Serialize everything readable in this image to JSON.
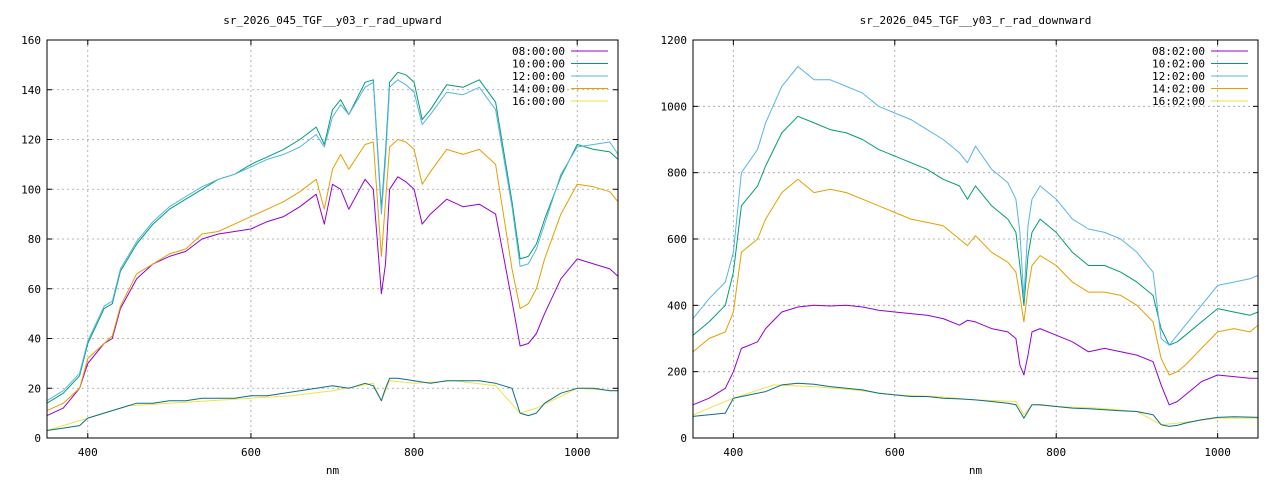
{
  "chart_data": [
    {
      "type": "line",
      "title": "sr_2026_045_TGF__y03_r_rad_upward",
      "xlabel": "nm",
      "ylabel": "",
      "xlim": [
        350,
        1050
      ],
      "ylim": [
        0,
        160
      ],
      "xticks": [
        400,
        600,
        800,
        1000
      ],
      "yticks": [
        0,
        20,
        40,
        60,
        80,
        100,
        120,
        140,
        160
      ],
      "grid": true,
      "legend": "top-right",
      "series": [
        {
          "name": "08:00:00",
          "color": "#9400d3",
          "x": [
            350,
            370,
            390,
            400,
            420,
            430,
            440,
            460,
            480,
            500,
            520,
            540,
            560,
            580,
            600,
            620,
            640,
            660,
            680,
            690,
            700,
            710,
            720,
            740,
            750,
            760,
            765,
            770,
            780,
            790,
            800,
            810,
            820,
            840,
            860,
            880,
            900,
            920,
            930,
            940,
            950,
            960,
            980,
            1000,
            1020,
            1040,
            1050
          ],
          "y": [
            9,
            12,
            20,
            30,
            38,
            40,
            52,
            64,
            70,
            73,
            75,
            80,
            82,
            83,
            84,
            87,
            89,
            93,
            98,
            86,
            102,
            100,
            92,
            104,
            100,
            58,
            70,
            100,
            105,
            103,
            100,
            86,
            90,
            96,
            93,
            94,
            90,
            55,
            37,
            38,
            42,
            50,
            64,
            72,
            70,
            68,
            65
          ]
        },
        {
          "name": "10:00:00",
          "color": "#009e73",
          "x": [
            350,
            370,
            390,
            400,
            420,
            430,
            440,
            460,
            480,
            500,
            520,
            540,
            560,
            580,
            600,
            620,
            640,
            660,
            680,
            690,
            700,
            710,
            720,
            740,
            750,
            760,
            765,
            770,
            780,
            790,
            800,
            810,
            820,
            840,
            860,
            880,
            900,
            920,
            930,
            940,
            950,
            960,
            980,
            1000,
            1020,
            1040,
            1050
          ],
          "y": [
            14,
            18,
            25,
            38,
            52,
            54,
            67,
            78,
            86,
            92,
            96,
            100,
            104,
            106,
            110,
            113,
            116,
            120,
            125,
            118,
            132,
            136,
            130,
            143,
            144,
            92,
            115,
            143,
            147,
            146,
            143,
            128,
            132,
            142,
            141,
            144,
            135,
            95,
            72,
            73,
            78,
            88,
            105,
            118,
            116,
            115,
            112
          ]
        },
        {
          "name": "12:00:00",
          "color": "#56b4e9",
          "x": [
            350,
            370,
            390,
            400,
            420,
            430,
            440,
            460,
            480,
            500,
            520,
            540,
            560,
            580,
            600,
            620,
            640,
            660,
            680,
            690,
            700,
            710,
            720,
            740,
            750,
            760,
            765,
            770,
            780,
            790,
            800,
            810,
            820,
            840,
            860,
            880,
            900,
            920,
            930,
            940,
            950,
            960,
            980,
            1000,
            1020,
            1040,
            1050
          ],
          "y": [
            15,
            19,
            26,
            39,
            53,
            55,
            68,
            79,
            87,
            93,
            97,
            101,
            104,
            106,
            109,
            112,
            114,
            117,
            122,
            117,
            129,
            134,
            130,
            141,
            143,
            90,
            112,
            141,
            144,
            142,
            139,
            126,
            130,
            139,
            138,
            141,
            132,
            93,
            69,
            70,
            76,
            86,
            106,
            117,
            118,
            119,
            114
          ]
        },
        {
          "name": "14:00:00",
          "color": "#e69f00",
          "x": [
            350,
            370,
            390,
            400,
            420,
            430,
            440,
            460,
            480,
            500,
            520,
            540,
            560,
            580,
            600,
            620,
            640,
            660,
            680,
            690,
            700,
            710,
            720,
            740,
            750,
            760,
            765,
            770,
            780,
            790,
            800,
            810,
            820,
            840,
            860,
            880,
            900,
            920,
            930,
            940,
            950,
            960,
            980,
            1000,
            1020,
            1040,
            1050
          ],
          "y": [
            11,
            14,
            20,
            32,
            38,
            41,
            53,
            66,
            70,
            74,
            76,
            82,
            83,
            86,
            89,
            92,
            95,
            99,
            104,
            92,
            108,
            114,
            108,
            118,
            119,
            73,
            95,
            117,
            120,
            119,
            116,
            102,
            107,
            116,
            114,
            116,
            110,
            68,
            52,
            54,
            60,
            72,
            90,
            102,
            101,
            99,
            95
          ]
        },
        {
          "name": "16:00:00",
          "color": "#f0e442",
          "x": [
            350,
            400,
            450,
            500,
            550,
            600,
            650,
            700,
            750,
            760,
            770,
            800,
            850,
            900,
            930,
            950,
            1000,
            1050
          ],
          "y": [
            3,
            8,
            13,
            14,
            15,
            16,
            17,
            19,
            22,
            15,
            23,
            22,
            23,
            21,
            10,
            12,
            20,
            19
          ]
        },
        {
          "name": "",
          "color": "#0b6e8a",
          "x": [
            350,
            370,
            390,
            400,
            420,
            440,
            460,
            480,
            500,
            520,
            540,
            560,
            580,
            600,
            620,
            640,
            660,
            680,
            700,
            720,
            740,
            750,
            760,
            765,
            770,
            780,
            800,
            820,
            840,
            860,
            880,
            900,
            920,
            930,
            940,
            950,
            960,
            980,
            1000,
            1020,
            1040,
            1050
          ],
          "y": [
            3,
            4,
            5,
            8,
            10,
            12,
            14,
            14,
            15,
            15,
            16,
            16,
            16,
            17,
            17,
            18,
            19,
            20,
            21,
            20,
            22,
            21,
            15,
            20,
            24,
            24,
            23,
            22,
            23,
            23,
            23,
            22,
            20,
            10,
            9,
            10,
            14,
            18,
            20,
            20,
            19,
            19
          ]
        }
      ]
    },
    {
      "type": "line",
      "title": "sr_2026_045_TGF__y03_r_rad_downward",
      "xlabel": "nm",
      "ylabel": "",
      "xlim": [
        350,
        1050
      ],
      "ylim": [
        0,
        1200
      ],
      "xticks": [
        400,
        600,
        800,
        1000
      ],
      "yticks": [
        0,
        200,
        400,
        600,
        800,
        1000,
        1200
      ],
      "grid": true,
      "legend": "top-right",
      "series": [
        {
          "name": "08:02:00",
          "color": "#9400d3",
          "x": [
            350,
            370,
            390,
            400,
            410,
            430,
            440,
            460,
            480,
            500,
            520,
            540,
            560,
            580,
            600,
            620,
            640,
            660,
            680,
            690,
            700,
            720,
            740,
            750,
            755,
            760,
            765,
            770,
            780,
            800,
            820,
            840,
            860,
            880,
            900,
            920,
            930,
            940,
            950,
            960,
            980,
            1000,
            1020,
            1040,
            1050
          ],
          "y": [
            100,
            120,
            150,
            200,
            270,
            290,
            330,
            380,
            395,
            400,
            398,
            400,
            395,
            385,
            380,
            375,
            370,
            360,
            340,
            355,
            350,
            330,
            320,
            300,
            220,
            190,
            250,
            320,
            330,
            310,
            290,
            260,
            270,
            260,
            250,
            230,
            160,
            100,
            110,
            130,
            170,
            190,
            185,
            180,
            180
          ]
        },
        {
          "name": "10:02:00",
          "color": "#009e73",
          "x": [
            350,
            370,
            390,
            400,
            410,
            430,
            440,
            460,
            480,
            500,
            520,
            540,
            560,
            580,
            600,
            620,
            640,
            660,
            680,
            690,
            700,
            720,
            740,
            750,
            755,
            760,
            765,
            770,
            780,
            800,
            820,
            840,
            860,
            880,
            900,
            920,
            930,
            940,
            950,
            960,
            980,
            1000,
            1020,
            1040,
            1050
          ],
          "y": [
            310,
            350,
            400,
            500,
            700,
            760,
            820,
            920,
            970,
            950,
            930,
            920,
            900,
            870,
            850,
            830,
            810,
            780,
            760,
            720,
            760,
            700,
            660,
            620,
            520,
            400,
            550,
            620,
            660,
            620,
            560,
            520,
            520,
            500,
            470,
            430,
            330,
            280,
            290,
            310,
            350,
            390,
            380,
            370,
            380
          ]
        },
        {
          "name": "12:02:00",
          "color": "#56b4e9",
          "x": [
            350,
            370,
            390,
            400,
            410,
            430,
            440,
            460,
            480,
            500,
            520,
            540,
            560,
            580,
            600,
            620,
            640,
            660,
            680,
            690,
            700,
            720,
            740,
            750,
            755,
            760,
            765,
            770,
            780,
            800,
            820,
            840,
            860,
            880,
            900,
            920,
            930,
            940,
            950,
            960,
            980,
            1000,
            1020,
            1040,
            1050
          ],
          "y": [
            360,
            420,
            470,
            560,
            800,
            870,
            950,
            1060,
            1120,
            1080,
            1080,
            1060,
            1040,
            1000,
            980,
            960,
            930,
            900,
            860,
            830,
            880,
            810,
            770,
            720,
            620,
            420,
            640,
            720,
            760,
            720,
            660,
            630,
            620,
            600,
            560,
            500,
            300,
            280,
            310,
            340,
            400,
            460,
            470,
            480,
            490
          ]
        },
        {
          "name": "14:02:00",
          "color": "#e69f00",
          "x": [
            350,
            370,
            390,
            400,
            410,
            430,
            440,
            460,
            480,
            500,
            520,
            540,
            560,
            580,
            600,
            620,
            640,
            660,
            680,
            690,
            700,
            720,
            740,
            750,
            755,
            760,
            765,
            770,
            780,
            800,
            820,
            840,
            860,
            880,
            900,
            920,
            930,
            940,
            950,
            960,
            980,
            1000,
            1020,
            1040,
            1050
          ],
          "y": [
            260,
            300,
            320,
            380,
            560,
            600,
            660,
            740,
            780,
            740,
            750,
            740,
            720,
            700,
            680,
            660,
            650,
            640,
            600,
            580,
            610,
            560,
            530,
            500,
            430,
            350,
            450,
            520,
            550,
            520,
            470,
            440,
            440,
            430,
            400,
            350,
            240,
            190,
            200,
            220,
            270,
            320,
            330,
            320,
            340
          ]
        },
        {
          "name": "16:02:00",
          "color": "#f0e442",
          "x": [
            350,
            400,
            450,
            500,
            550,
            600,
            650,
            700,
            750,
            760,
            770,
            800,
            850,
            900,
            930,
            950,
            1000,
            1050
          ],
          "y": [
            70,
            120,
            160,
            155,
            145,
            130,
            125,
            115,
            110,
            70,
            100,
            95,
            90,
            80,
            40,
            45,
            60,
            60
          ]
        },
        {
          "name": "",
          "color": "#0b6e8a",
          "x": [
            350,
            370,
            390,
            400,
            420,
            440,
            460,
            480,
            500,
            520,
            540,
            560,
            580,
            600,
            620,
            640,
            660,
            680,
            700,
            720,
            740,
            750,
            760,
            765,
            770,
            780,
            800,
            820,
            840,
            860,
            880,
            900,
            920,
            930,
            940,
            950,
            960,
            980,
            1000,
            1020,
            1040,
            1050
          ],
          "y": [
            65,
            70,
            75,
            120,
            130,
            140,
            160,
            165,
            162,
            155,
            150,
            145,
            135,
            130,
            125,
            125,
            120,
            118,
            115,
            110,
            105,
            100,
            60,
            80,
            100,
            100,
            95,
            90,
            88,
            85,
            82,
            80,
            70,
            40,
            35,
            38,
            45,
            55,
            62,
            64,
            63,
            62
          ]
        }
      ]
    }
  ]
}
